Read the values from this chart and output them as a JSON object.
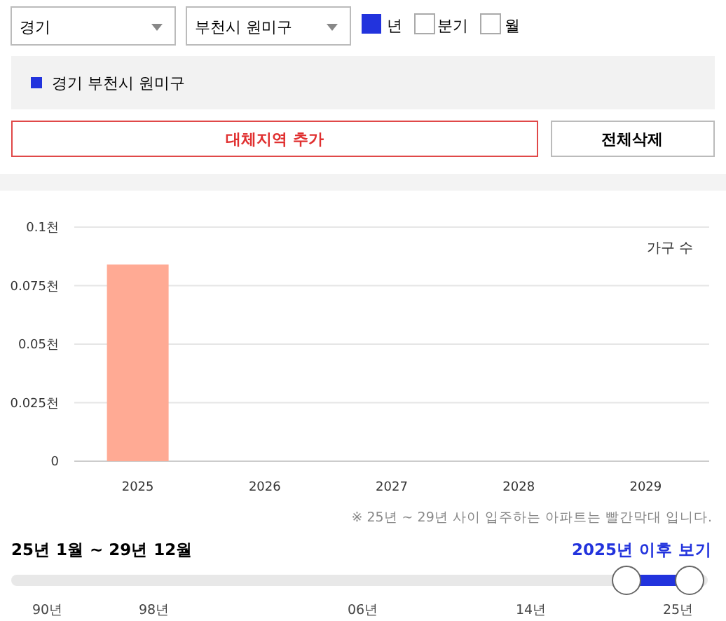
{
  "chart_data": {
    "type": "bar",
    "categories": [
      "2025",
      "2026",
      "2027",
      "2028",
      "2029"
    ],
    "values": [
      0.084,
      0,
      0,
      0,
      0
    ],
    "color": "#ffaa94",
    "ylabel": "가구 수",
    "ylim": [
      0,
      0.1
    ],
    "yticks": [
      0,
      {
        "value": 0.025,
        "label": "0.025천"
      },
      {
        "value": 0.05,
        "label": "0.05천"
      },
      {
        "value": 0.075,
        "label": "0.075천"
      },
      {
        "value": 0.1,
        "label": "0.1천"
      }
    ],
    "grid": "y",
    "annotations": [
      "경기",
      "부천시 원미구",
      "년",
      "분기",
      "월",
      "경기 부천시 원미구",
      "대체지역 추가",
      "전체삭제",
      "※ 25년 ~ 29년 사이 입주하는 아파트는 빨간막대 입니다.",
      "25년 1월 ~ 29년 12월",
      "2025년 이후 보기",
      "90년",
      "98년",
      "06년",
      "14년",
      "25년"
    ]
  }
}
